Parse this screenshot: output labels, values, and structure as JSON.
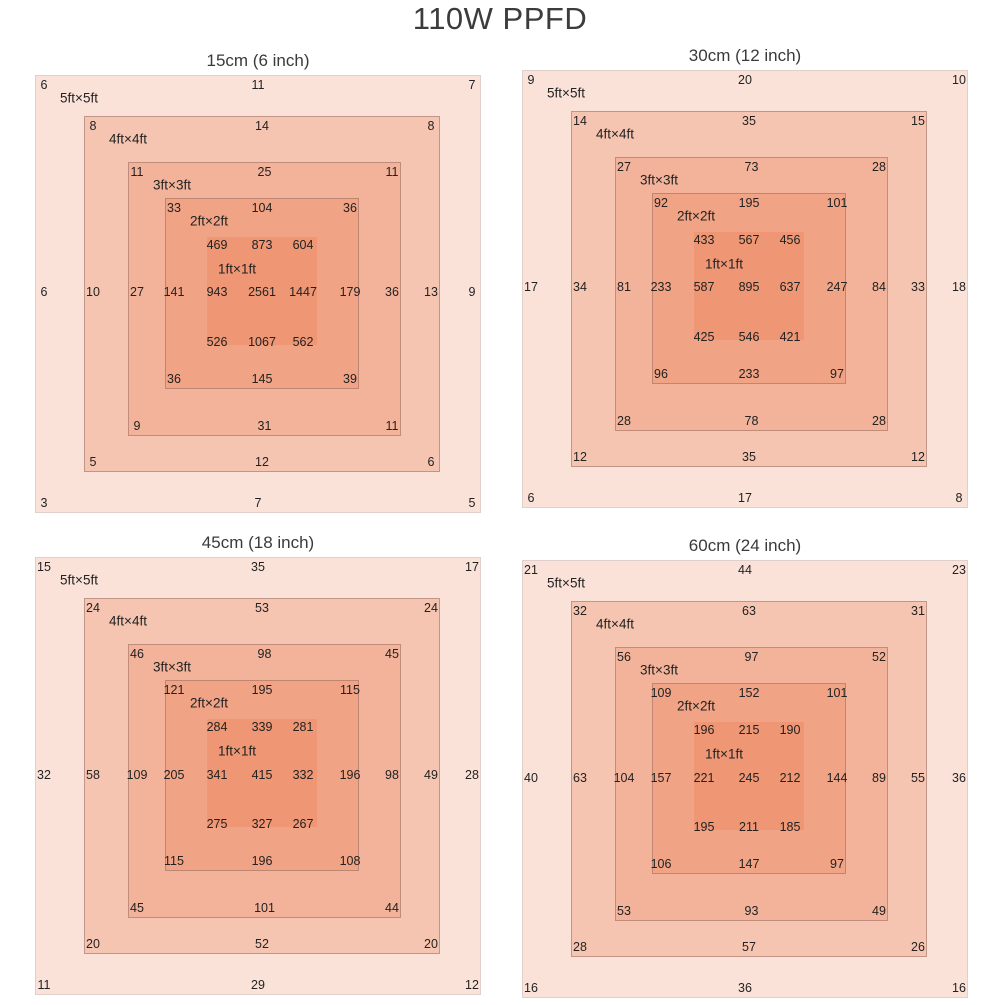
{
  "chart_data": {
    "type": "heatmap",
    "title": "110W PPFD",
    "colors": {
      "5ft": "#fbe2d9",
      "4ft": "#f6c5b1",
      "3ft": "#f3b39a",
      "2ft": "#f1a385",
      "1ft": "#ef9775"
    },
    "layer_labels": [
      "5ft×5ft",
      "4ft×4ft",
      "3ft×3ft",
      "2ft×2ft",
      "1ft×1ft"
    ],
    "panels": [
      {
        "title": "15cm (6 inch)",
        "layers": [
          {
            "label": "5ft×5ft",
            "tl": "6",
            "tc": "11",
            "tr": "7",
            "ml": "6",
            "mr": "9",
            "bl": "3",
            "bc": "7",
            "br": "5"
          },
          {
            "label": "4ft×4ft",
            "tl": "8",
            "tc": "14",
            "tr": "8",
            "ml": "10",
            "mr": "13",
            "bl": "5",
            "bc": "12",
            "br": "6"
          },
          {
            "label": "3ft×3ft",
            "tl": "11",
            "tc": "25",
            "tr": "11",
            "ml": "27",
            "mr": "36",
            "bl": "9",
            "bc": "31",
            "br": "11"
          },
          {
            "label": "2ft×2ft",
            "tl": "33",
            "tc": "104",
            "tr": "36",
            "ml": "141",
            "mr": "179",
            "bl": "36",
            "bc": "145",
            "br": "39"
          },
          {
            "label": "1ft×1ft",
            "tl": "469",
            "tc": "873",
            "tr": "604",
            "ml": "943",
            "mc": "2561",
            "mr": "1447",
            "bl": "526",
            "bc": "1067",
            "br": "562"
          }
        ]
      },
      {
        "title": "30cm (12 inch)",
        "layers": [
          {
            "label": "5ft×5ft",
            "tl": "9",
            "tc": "20",
            "tr": "10",
            "ml": "17",
            "mr": "18",
            "bl": "6",
            "bc": "17",
            "br": "8"
          },
          {
            "label": "4ft×4ft",
            "tl": "14",
            "tc": "35",
            "tr": "15",
            "ml": "34",
            "mr": "33",
            "bl": "12",
            "bc": "35",
            "br": "12"
          },
          {
            "label": "3ft×3ft",
            "tl": "27",
            "tc": "73",
            "tr": "28",
            "ml": "81",
            "mr": "84",
            "bl": "28",
            "bc": "78",
            "br": "28"
          },
          {
            "label": "2ft×2ft",
            "tl": "92",
            "tc": "195",
            "tr": "101",
            "ml": "233",
            "mr": "247",
            "bl": "96",
            "bc": "233",
            "br": "97"
          },
          {
            "label": "1ft×1ft",
            "tl": "433",
            "tc": "567",
            "tr": "456",
            "ml": "587",
            "mc": "895",
            "mr": "637",
            "bl": "425",
            "bc": "546",
            "br": "421"
          }
        ]
      },
      {
        "title": "45cm (18 inch)",
        "layers": [
          {
            "label": "5ft×5ft",
            "tl": "15",
            "tc": "35",
            "tr": "17",
            "ml": "32",
            "mr": "28",
            "bl": "11",
            "bc": "29",
            "br": "12"
          },
          {
            "label": "4ft×4ft",
            "tl": "24",
            "tc": "53",
            "tr": "24",
            "ml": "58",
            "mr": "49",
            "bl": "20",
            "bc": "52",
            "br": "20"
          },
          {
            "label": "3ft×3ft",
            "tl": "46",
            "tc": "98",
            "tr": "45",
            "ml": "109",
            "mr": "98",
            "bl": "45",
            "bc": "101",
            "br": "44"
          },
          {
            "label": "2ft×2ft",
            "tl": "121",
            "tc": "195",
            "tr": "115",
            "ml": "205",
            "mr": "196",
            "bl": "115",
            "bc": "196",
            "br": "108"
          },
          {
            "label": "1ft×1ft",
            "tl": "284",
            "tc": "339",
            "tr": "281",
            "ml": "341",
            "mc": "415",
            "mr": "332",
            "bl": "275",
            "bc": "327",
            "br": "267"
          }
        ]
      },
      {
        "title": "60cm (24 inch)",
        "layers": [
          {
            "label": "5ft×5ft",
            "tl": "21",
            "tc": "44",
            "tr": "23",
            "ml": "40",
            "mr": "36",
            "bl": "16",
            "bc": "36",
            "br": "16"
          },
          {
            "label": "4ft×4ft",
            "tl": "32",
            "tc": "63",
            "tr": "31",
            "ml": "63",
            "mr": "55",
            "bl": "28",
            "bc": "57",
            "br": "26"
          },
          {
            "label": "3ft×3ft",
            "tl": "56",
            "tc": "97",
            "tr": "52",
            "ml": "104",
            "mr": "89",
            "bl": "53",
            "bc": "93",
            "br": "49"
          },
          {
            "label": "2ft×2ft",
            "tl": "109",
            "tc": "152",
            "tr": "101",
            "ml": "157",
            "mr": "144",
            "bl": "106",
            "bc": "147",
            "br": "97"
          },
          {
            "label": "1ft×1ft",
            "tl": "196",
            "tc": "215",
            "tr": "190",
            "ml": "221",
            "mc": "245",
            "mr": "212",
            "bl": "195",
            "bc": "211",
            "br": "185"
          }
        ]
      }
    ]
  }
}
